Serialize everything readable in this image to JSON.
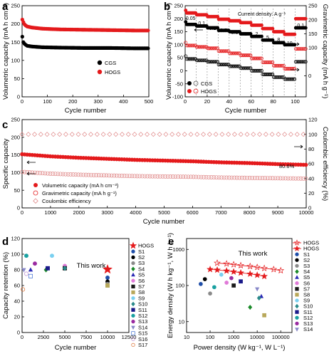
{
  "chart_data": [
    {
      "panel": "a",
      "type": "scatter",
      "xlabel": "Cycle number",
      "ylabel": "Volumetric capacity (mA h cm⁻³)",
      "xlim": [
        0,
        500
      ],
      "ylim": [
        0,
        250
      ],
      "xticks": [
        0,
        100,
        200,
        300,
        400,
        500
      ],
      "yticks": [
        0,
        50,
        100,
        150,
        200,
        250
      ],
      "legend_position": "center-right",
      "series": [
        {
          "name": "CGS",
          "color": "#000000",
          "x": [
            1,
            5,
            10,
            20,
            40,
            80,
            150,
            250,
            350,
            450,
            500
          ],
          "y": [
            165,
            150,
            145,
            140,
            138,
            136,
            135,
            134,
            134,
            133,
            133
          ]
        },
        {
          "name": "HOGS",
          "color": "#e41a1c",
          "x": [
            1,
            5,
            10,
            20,
            40,
            80,
            150,
            250,
            350,
            450,
            500
          ],
          "y": [
            212,
            205,
            198,
            193,
            190,
            187,
            185,
            184,
            183,
            182,
            182
          ]
        }
      ]
    },
    {
      "panel": "b",
      "type": "scatter",
      "xlabel": "Cycle number",
      "ylabel": "Volumetric capacity (mA h cm⁻³)",
      "y2label": "Gravimetric capacity (mA h g⁻¹)",
      "xlim": [
        0,
        110
      ],
      "ylim": [
        -100,
        250
      ],
      "y2lim": [
        -75,
        250
      ],
      "xticks": [
        0,
        20,
        40,
        60,
        80,
        100
      ],
      "yticks": [
        -100,
        -50,
        0,
        50,
        100,
        150,
        200,
        250
      ],
      "y2ticks": [
        0,
        100,
        150,
        200,
        250
      ],
      "annotation": "Current density: A g⁻¹",
      "rate_labels": [
        "0.05",
        "0.1",
        "0.2",
        "0.5",
        "0.8",
        "1",
        "2",
        "5",
        "8",
        "10",
        "0.1"
      ],
      "legend_position": "bottom-left",
      "series": [
        {
          "name": "CGS",
          "axis": "left",
          "marker": "filled",
          "color": "#000000",
          "y": [
            178,
            172,
            165,
            155,
            150,
            142,
            132,
            118,
            108,
            100,
            165
          ]
        },
        {
          "name": "HOGS",
          "axis": "left",
          "marker": "filled",
          "color": "#e41a1c",
          "y": [
            222,
            215,
            208,
            198,
            192,
            185,
            175,
            162,
            150,
            140,
            200
          ]
        },
        {
          "name": "CGS",
          "axis": "right",
          "marker": "open",
          "color": "#000000",
          "y": [
            60,
            55,
            50,
            40,
            34,
            27,
            18,
            5,
            -5,
            -12,
            50
          ]
        },
        {
          "name": "HOGS",
          "axis": "right",
          "marker": "open",
          "color": "#e41a1c",
          "y": [
            108,
            103,
            98,
            88,
            80,
            73,
            62,
            48,
            36,
            25,
            96
          ]
        }
      ]
    },
    {
      "panel": "c",
      "type": "scatter",
      "xlabel": "Cycle number",
      "ylabel": "Specific capacity",
      "y2label": "Coulombic efficiency (%)",
      "xlim": [
        0,
        10000
      ],
      "ylim": [
        0,
        250
      ],
      "y2lim": [
        0,
        120
      ],
      "xticks": [
        0,
        1000,
        2000,
        3000,
        4000,
        5000,
        6000,
        7000,
        8000,
        9000,
        10000
      ],
      "yticks": [
        0,
        50,
        100,
        150,
        200,
        250
      ],
      "y2ticks": [
        0,
        20,
        40,
        60,
        80,
        100,
        120
      ],
      "annotation": "80.6%",
      "legend_position": "bottom-left",
      "series": [
        {
          "name": "Volumetric capacity (mA h cm⁻³)",
          "axis": "left",
          "color": "#e41a1c",
          "x": [
            0,
            1000,
            2000,
            3000,
            4000,
            5000,
            6000,
            7000,
            8000,
            9000,
            10000
          ],
          "y": [
            152,
            146,
            142,
            139,
            136,
            134,
            132,
            129,
            127,
            124,
            122
          ]
        },
        {
          "name": "Gravimetric capacity (mA h g⁻¹)",
          "axis": "left",
          "color": "#e41a1c",
          "x": [
            0,
            1000,
            2000,
            3000,
            4000,
            5000,
            6000,
            7000,
            8000,
            9000,
            10000
          ],
          "y": [
            102,
            97,
            94,
            92,
            90,
            89,
            88,
            86,
            85,
            84,
            83
          ]
        },
        {
          "name": "Coulombic efficiency",
          "axis": "right",
          "color": "#e08a8a",
          "x": [
            0,
            1000,
            2000,
            3000,
            4000,
            5000,
            6000,
            7000,
            8000,
            9000,
            10000
          ],
          "y": [
            100,
            100,
            100,
            100,
            100,
            100,
            100,
            100,
            100,
            100,
            100
          ]
        }
      ]
    },
    {
      "panel": "d",
      "type": "scatter",
      "xlabel": "Cycle number",
      "ylabel": "Capacity retention (%)",
      "xlim": [
        0,
        12500
      ],
      "ylim": [
        0,
        120
      ],
      "xticks": [
        0,
        2500,
        5000,
        7500,
        10000,
        12500
      ],
      "yticks": [
        0,
        20,
        40,
        60,
        80,
        100,
        120
      ],
      "annotation": "This work",
      "legend_position": "right-outside",
      "points": [
        {
          "name": "HOGS",
          "x": 10000,
          "y": 80.6,
          "color": "#e41a1c",
          "marker": "star"
        },
        {
          "name": "S1",
          "x": 10000,
          "y": 70,
          "color": "#1f4ea8",
          "marker": "circle"
        },
        {
          "name": "S2",
          "x": 10000,
          "y": 65,
          "color": "#000000",
          "marker": "circle"
        },
        {
          "name": "S3",
          "x": 10000,
          "y": 62,
          "color": "#8a8a8a",
          "marker": "circle"
        },
        {
          "name": "S4",
          "x": 2800,
          "y": 80,
          "color": "#1a8a2a",
          "marker": "diamond"
        },
        {
          "name": "S5",
          "x": 1000,
          "y": 80,
          "color": "#2a2ab5",
          "marker": "triangle-up"
        },
        {
          "name": "S6",
          "x": 5000,
          "y": 85,
          "color": "#e07ad8",
          "marker": "circle"
        },
        {
          "name": "S7",
          "x": 5000,
          "y": 82,
          "color": "#1a1a1a",
          "marker": "square"
        },
        {
          "name": "S8",
          "x": 10000,
          "y": 60,
          "color": "#b8a85a",
          "marker": "square"
        },
        {
          "name": "S9",
          "x": 3500,
          "y": 98,
          "color": "#7ad0f0",
          "marker": "circle"
        },
        {
          "name": "S10",
          "x": 5000,
          "y": 82,
          "color": "#2a8a8a",
          "marker": "diamond"
        },
        {
          "name": "S11",
          "x": 3000,
          "y": 82,
          "color": "#1a1a8a",
          "marker": "square"
        },
        {
          "name": "S12",
          "x": 500,
          "y": 98,
          "color": "#18a0a0",
          "marker": "circle"
        },
        {
          "name": "S13",
          "x": 1500,
          "y": 88,
          "color": "#9a2aa0",
          "marker": "circle"
        },
        {
          "name": "S14",
          "x": 200,
          "y": 80,
          "color": "#8888c8",
          "marker": "triangle-down"
        },
        {
          "name": "S15",
          "x": 1000,
          "y": 72,
          "color": "#3a6ad0",
          "marker": "square-open"
        },
        {
          "name": "S16",
          "x": 500,
          "y": 75,
          "color": "#b88ad0",
          "marker": "circle-open"
        },
        {
          "name": "S17",
          "x": 100,
          "y": 55,
          "color": "#d86a2a",
          "marker": "circle-open"
        }
      ]
    },
    {
      "panel": "e",
      "type": "scatter",
      "xlabel": "Power density (W kg⁻¹, W L⁻¹)",
      "ylabel": "Energy density (W h kg⁻¹, W h L⁻¹)",
      "xscale": "log",
      "yscale": "log",
      "xlim": [
        10,
        300000
      ],
      "ylim": [
        5,
        2000
      ],
      "xticks": [
        10,
        100,
        1000,
        10000,
        100000
      ],
      "yticks": [
        10,
        100,
        1000
      ],
      "annotation": "This work",
      "legend_position": "right-outside",
      "series": [
        {
          "name": "HOGS",
          "color": "#e41a1c",
          "marker": "star-open",
          "x": [
            200,
            500,
            1000,
            2000,
            5000,
            10000,
            20000,
            50000,
            100000
          ],
          "y": [
            420,
            400,
            380,
            360,
            340,
            320,
            300,
            280,
            260
          ]
        },
        {
          "name": "HOGS",
          "color": "#e41a1c",
          "marker": "star",
          "x": [
            100,
            200,
            500,
            1000,
            2000,
            5000,
            10000,
            20000
          ],
          "y": [
            280,
            270,
            255,
            240,
            225,
            210,
            195,
            180
          ]
        }
      ],
      "points": [
        {
          "name": "S1",
          "x": 40,
          "y": 110,
          "color": "#1f4ea8",
          "marker": "circle"
        },
        {
          "name": "S2",
          "x": 60,
          "y": 150,
          "color": "#000000",
          "marker": "circle"
        },
        {
          "name": "S3",
          "x": 100,
          "y": 60,
          "color": "#8a8a8a",
          "marker": "circle"
        },
        {
          "name": "S4",
          "x": 5000,
          "y": 25,
          "color": "#1a8a2a",
          "marker": "diamond"
        },
        {
          "name": "S5",
          "x": 15000,
          "y": 50,
          "color": "#2a2ab5",
          "marker": "triangle-up"
        },
        {
          "name": "S6",
          "x": 500,
          "y": 120,
          "color": "#e07ad8",
          "marker": "circle"
        },
        {
          "name": "S7",
          "x": 1000,
          "y": 100,
          "color": "#1a1a1a",
          "marker": "square"
        },
        {
          "name": "S8",
          "x": 20000,
          "y": 15,
          "color": "#b8a85a",
          "marker": "square"
        },
        {
          "name": "S9",
          "x": 300,
          "y": 200,
          "color": "#7ad0f0",
          "marker": "circle"
        },
        {
          "name": "S10",
          "x": 12000,
          "y": 45,
          "color": "#2a8a8a",
          "marker": "diamond"
        },
        {
          "name": "S11",
          "x": 2000,
          "y": 130,
          "color": "#1a1a8a",
          "marker": "square"
        },
        {
          "name": "S12",
          "x": 150,
          "y": 90,
          "color": "#18a0a0",
          "marker": "circle"
        },
        {
          "name": "S13",
          "x": 800,
          "y": 160,
          "color": "#9a2aa0",
          "marker": "circle"
        },
        {
          "name": "S14",
          "x": 10000,
          "y": 80,
          "color": "#8888c8",
          "marker": "triangle-down"
        }
      ]
    }
  ]
}
